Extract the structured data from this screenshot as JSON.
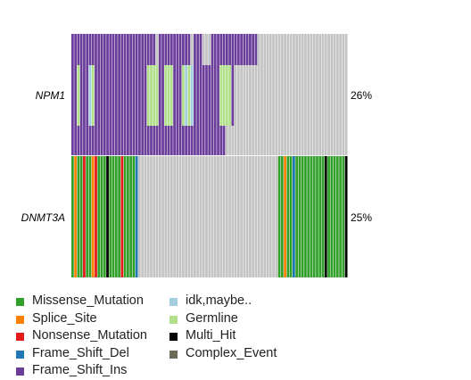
{
  "chart_data": {
    "type": "heatmap",
    "genes": [
      {
        "name": "NPM1",
        "percent": "26%"
      },
      {
        "name": "DNMT3A",
        "percent": "25%"
      }
    ],
    "n_samples": 95,
    "colors": {
      "none": "#c4c4c4",
      "Missense_Mutation": "#33a02c",
      "Splice_Site": "#ff7f00",
      "Nonsense_Mutation": "#e31a1c",
      "Frame_Shift_Del": "#1f78b4",
      "Frame_Shift_Ins": "#6a3d9a",
      "idk,maybe..": "#a6cee3",
      "Germline": "#b2df8a",
      "Multi_Hit": "#000000",
      "Complex_Event": "#6b6b57"
    },
    "codes": {
      "0": "none",
      "M": "Missense_Mutation",
      "S": "Splice_Site",
      "N": "Nonsense_Mutation",
      "D": "Frame_Shift_Del",
      "I": "Frame_Shift_Ins",
      "K": "idk,maybe..",
      "G": "Germline",
      "H": "Multi_Hit",
      "C": "Complex_Event"
    },
    "matrix": {
      "NPM1": {
        "top": "IIIIIIIIIIIIIIIIIIIIIIIIIIIII0IIIIIIIIIII0III000IIIIIIIIIIIIIIII0000000000000000000000000000000",
        "middle": "IIGIIIKGIIIIIIIIIIIIIIIIIIGGGGIIGGGIIIGKGKIIIIIIIIIGGGGI0000000000000000000000000000000000000000",
        "bottom": "IIIIIIIIIIIIIIIIIIIIIIIIIIIIIIIIIIIIIIIIIIIIIIIIIIIII000000000000000000000000000000000000000000"
      },
      "DNMT3A": "MSMMNMMSNMMMHMMMMNMMMMD000000000000000000000000000000000000000000000000MMSMMDMMMMMMMMMMHMMMMMMHMD"
    },
    "legend": [
      [
        "Missense_Mutation",
        "Splice_Site",
        "Nonsense_Mutation",
        "Frame_Shift_Del",
        "Frame_Shift_Ins"
      ],
      [
        "idk,maybe..",
        "Germline",
        "Multi_Hit",
        "Complex_Event"
      ]
    ]
  }
}
